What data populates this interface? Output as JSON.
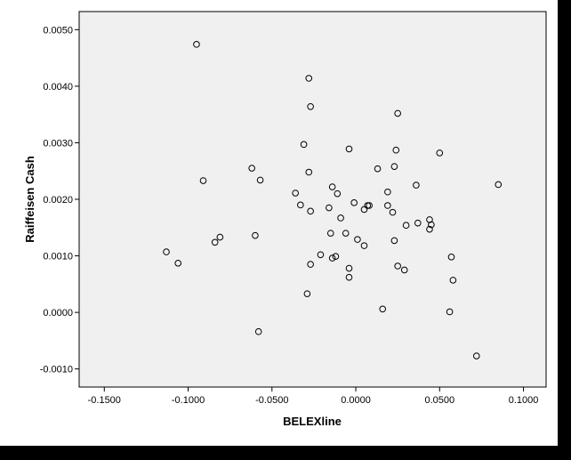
{
  "chart_data": {
    "type": "scatter",
    "title": "",
    "xlabel": "BELEXline",
    "ylabel": "Raiffeisen Cash",
    "xlim": [
      -0.165,
      0.1135
    ],
    "ylim": [
      -0.00132,
      0.00532
    ],
    "x_ticks": [
      -0.15,
      -0.1,
      -0.05,
      0.0,
      0.05,
      0.1
    ],
    "x_tick_labels": [
      "-0.1500",
      "-0.1000",
      "-0.0500",
      "0.0000",
      "0.0500",
      "0.1000"
    ],
    "y_ticks": [
      -0.001,
      0.0,
      0.001,
      0.002,
      0.003,
      0.004,
      0.005
    ],
    "y_tick_labels": [
      "-0.0010",
      "0.0000",
      "0.0010",
      "0.0020",
      "0.0030",
      "0.0040",
      "0.0050"
    ],
    "grid": false,
    "plot_background": "#f0f0f0",
    "marker_color": "#000000",
    "points": [
      [
        -0.095,
        0.00474
      ],
      [
        -0.028,
        0.00414
      ],
      [
        -0.027,
        0.00364
      ],
      [
        0.025,
        0.00352
      ],
      [
        -0.031,
        0.00297
      ],
      [
        -0.004,
        0.00289
      ],
      [
        0.024,
        0.00287
      ],
      [
        0.05,
        0.00282
      ],
      [
        -0.062,
        0.00255
      ],
      [
        0.013,
        0.00254
      ],
      [
        0.023,
        0.00258
      ],
      [
        -0.028,
        0.00248
      ],
      [
        -0.091,
        0.00233
      ],
      [
        -0.057,
        0.00234
      ],
      [
        0.036,
        0.00225
      ],
      [
        0.085,
        0.00226
      ],
      [
        -0.014,
        0.00222
      ],
      [
        -0.036,
        0.00211
      ],
      [
        -0.011,
        0.0021
      ],
      [
        0.019,
        0.00213
      ],
      [
        -0.001,
        0.00194
      ],
      [
        0.007,
        0.00189
      ],
      [
        0.008,
        0.00189
      ],
      [
        0.019,
        0.00189
      ],
      [
        -0.033,
        0.0019
      ],
      [
        -0.016,
        0.00185
      ],
      [
        0.005,
        0.00182
      ],
      [
        -0.027,
        0.00179
      ],
      [
        0.022,
        0.00177
      ],
      [
        -0.009,
        0.00167
      ],
      [
        0.044,
        0.00164
      ],
      [
        0.037,
        0.00158
      ],
      [
        0.045,
        0.00155
      ],
      [
        0.03,
        0.00154
      ],
      [
        0.044,
        0.00147
      ],
      [
        -0.015,
        0.0014
      ],
      [
        -0.006,
        0.0014
      ],
      [
        -0.06,
        0.00136
      ],
      [
        -0.081,
        0.00133
      ],
      [
        0.001,
        0.00129
      ],
      [
        0.023,
        0.00127
      ],
      [
        -0.084,
        0.00124
      ],
      [
        0.005,
        0.00118
      ],
      [
        -0.113,
        0.00107
      ],
      [
        -0.021,
        0.00102
      ],
      [
        -0.012,
        0.00099
      ],
      [
        -0.014,
        0.00096
      ],
      [
        0.057,
        0.00098
      ],
      [
        -0.106,
        0.00087
      ],
      [
        -0.027,
        0.00085
      ],
      [
        0.025,
        0.00082
      ],
      [
        -0.004,
        0.00078
      ],
      [
        0.029,
        0.00075
      ],
      [
        -0.004,
        0.00062
      ],
      [
        0.058,
        0.00057
      ],
      [
        -0.029,
        0.00033
      ],
      [
        0.016,
        6e-05
      ],
      [
        0.056,
        1e-05
      ],
      [
        -0.058,
        -0.00034
      ],
      [
        0.072,
        -0.00077
      ]
    ]
  }
}
